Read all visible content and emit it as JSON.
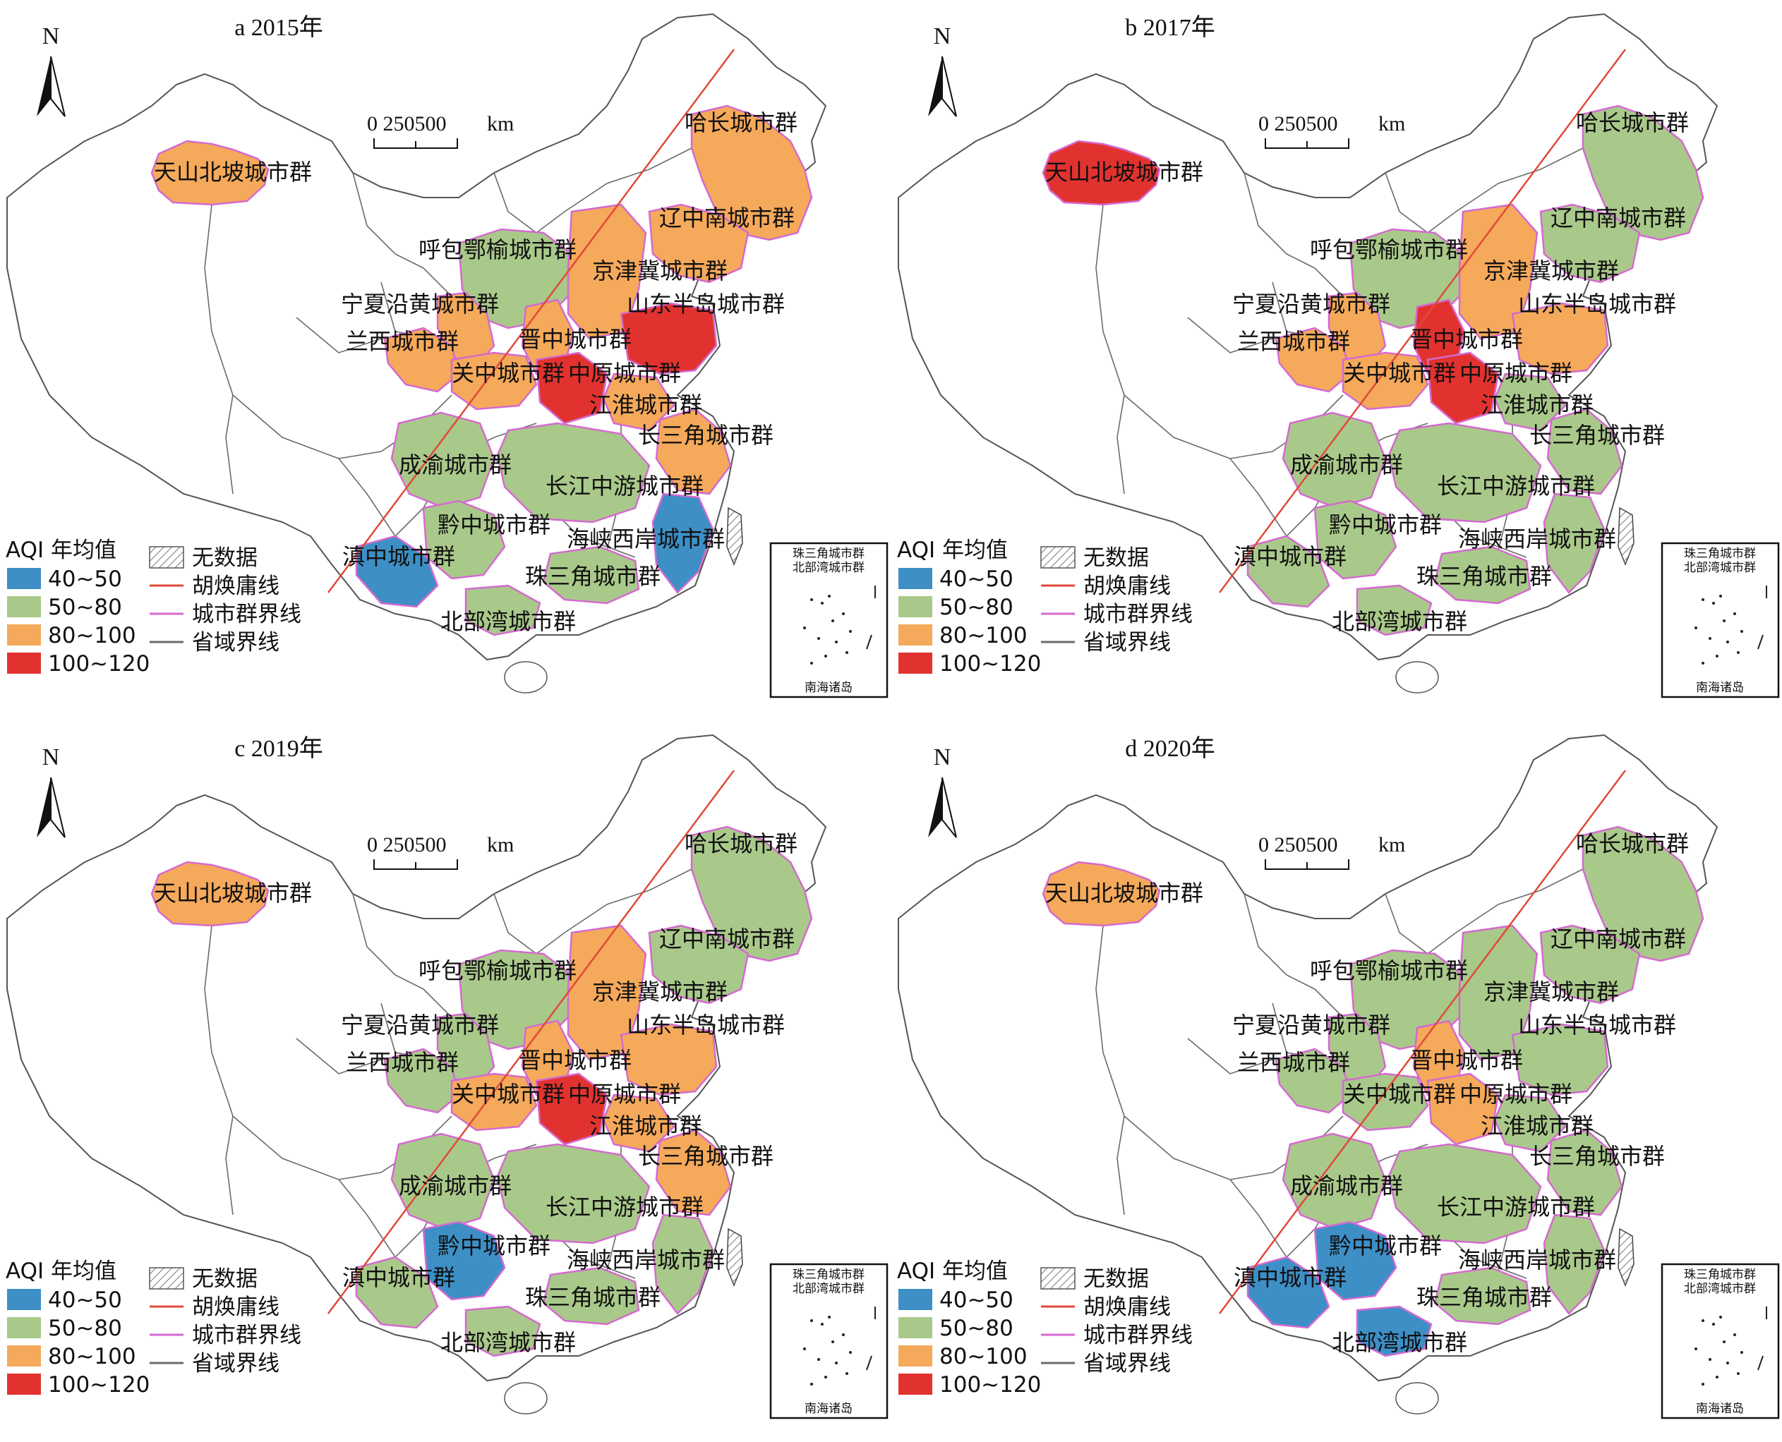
{
  "legend": {
    "title": "AQI 年均值",
    "classes": [
      {
        "label": "40~50",
        "color": "#3d8fc6"
      },
      {
        "label": "50~80",
        "color": "#a9c98a"
      },
      {
        "label": "80~100",
        "color": "#f5a95a"
      },
      {
        "label": "100~120",
        "color": "#e2322f"
      }
    ],
    "lines": [
      {
        "label": "无数据",
        "kind": "hatch"
      },
      {
        "label": "胡焕庸线",
        "kind": "red-line"
      },
      {
        "label": "城市群界线",
        "kind": "pink-line"
      },
      {
        "label": "省域界线",
        "kind": "gray-line"
      }
    ]
  },
  "north": "N",
  "scale": {
    "ticks": "0  250500",
    "unit": "km"
  },
  "inset": {
    "top_line1": "珠三角城市群",
    "top_line2": "北部湾城市群",
    "bottom": "南海诸岛"
  },
  "clusters": [
    "天山北坡城市群",
    "哈长城市群",
    "辽中南城市群",
    "呼包鄂榆城市群",
    "京津冀城市群",
    "宁夏沿黄城市群",
    "山东半岛城市群",
    "兰西城市群",
    "晋中城市群",
    "关中城市群",
    "中原城市群",
    "江淮城市群",
    "长三角城市群",
    "成渝城市群",
    "长江中游城市群",
    "黔中城市群",
    "海峡西岸城市群",
    "滇中城市群",
    "珠三角城市群",
    "北部湾城市群"
  ],
  "panels": [
    {
      "title": "a 2015年",
      "colors": {
        "tianshan": "o",
        "hachang": "o",
        "liaozhongnan": "o",
        "hubao": "g",
        "jingjinji": "o",
        "ningxia": "o",
        "shandong": "r",
        "lanxi": "o",
        "jinzhong": "o",
        "guanzhong": "o",
        "zhongyuan": "r",
        "jianghuai": "o",
        "changsanjiao": "o",
        "chengyu": "g",
        "changjiang": "g",
        "qianzhong": "g",
        "haixia": "b",
        "dianzhong": "b",
        "zhusanjiao": "g",
        "beibuwan": "g"
      }
    },
    {
      "title": "b 2017年",
      "colors": {
        "tianshan": "r",
        "hachang": "g",
        "liaozhongnan": "g",
        "hubao": "g",
        "jingjinji": "o",
        "ningxia": "o",
        "shandong": "o",
        "lanxi": "o",
        "jinzhong": "r",
        "guanzhong": "o",
        "zhongyuan": "r",
        "jianghuai": "g",
        "changsanjiao": "g",
        "chengyu": "g",
        "changjiang": "g",
        "qianzhong": "g",
        "haixia": "g",
        "dianzhong": "g",
        "zhusanjiao": "g",
        "beibuwan": "g"
      }
    },
    {
      "title": "c 2019年",
      "colors": {
        "tianshan": "o",
        "hachang": "g",
        "liaozhongnan": "g",
        "hubao": "g",
        "jingjinji": "o",
        "ningxia": "g",
        "shandong": "o",
        "lanxi": "g",
        "jinzhong": "o",
        "guanzhong": "o",
        "zhongyuan": "r",
        "jianghuai": "o",
        "changsanjiao": "o",
        "chengyu": "g",
        "changjiang": "g",
        "qianzhong": "b",
        "haixia": "g",
        "dianzhong": "g",
        "zhusanjiao": "g",
        "beibuwan": "g"
      }
    },
    {
      "title": "d 2020年",
      "colors": {
        "tianshan": "o",
        "hachang": "g",
        "liaozhongnan": "g",
        "hubao": "g",
        "jingjinji": "g",
        "ningxia": "g",
        "shandong": "g",
        "lanxi": "g",
        "jinzhong": "o",
        "guanzhong": "g",
        "zhongyuan": "o",
        "jianghuai": "g",
        "changsanjiao": "g",
        "chengyu": "g",
        "changjiang": "g",
        "qianzhong": "b",
        "haixia": "g",
        "dianzhong": "b",
        "zhusanjiao": "g",
        "beibuwan": "b"
      }
    }
  ]
}
